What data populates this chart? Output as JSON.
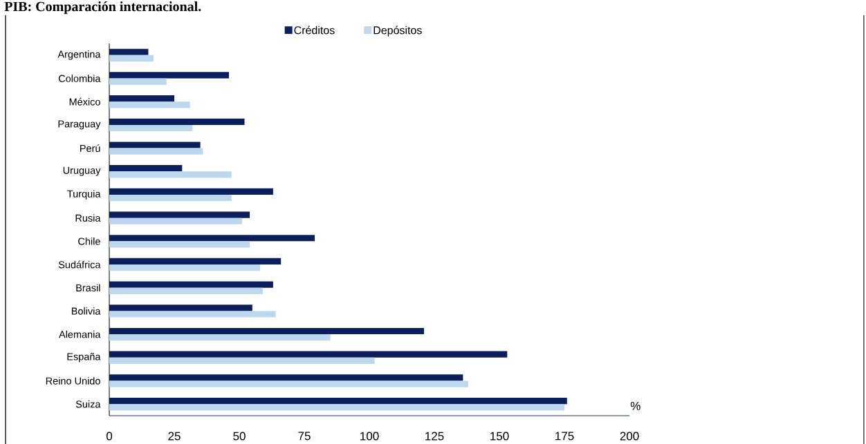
{
  "chart_data": {
    "type": "bar",
    "orientation": "horizontal",
    "title": "PIB: Comparación internacional.",
    "xlabel": "%",
    "categories": [
      "Argentina",
      "Colombia",
      "México",
      "Paraguay",
      "Perú",
      "Uruguay",
      "Turquia",
      "Rusia",
      "Chile",
      "Sudáfrica",
      "Brasil",
      "Bolivia",
      "Alemania",
      "España",
      "Reino Unido",
      "Suiza"
    ],
    "series": [
      {
        "name": "Créditos",
        "color": "#0b1f5b",
        "values": [
          15,
          46,
          25,
          52,
          35,
          28,
          63,
          54,
          79,
          66,
          63,
          55,
          121,
          153,
          136,
          176
        ]
      },
      {
        "name": "Depósitos",
        "color": "#bdd7ee",
        "values": [
          17,
          22,
          31,
          32,
          36,
          47,
          47,
          51,
          54,
          58,
          59,
          64,
          85,
          102,
          138,
          175
        ]
      }
    ],
    "xlim": [
      0,
      200
    ],
    "xticks": [
      0,
      25,
      50,
      75,
      100,
      125,
      150,
      175,
      200
    ],
    "legend": "top"
  }
}
